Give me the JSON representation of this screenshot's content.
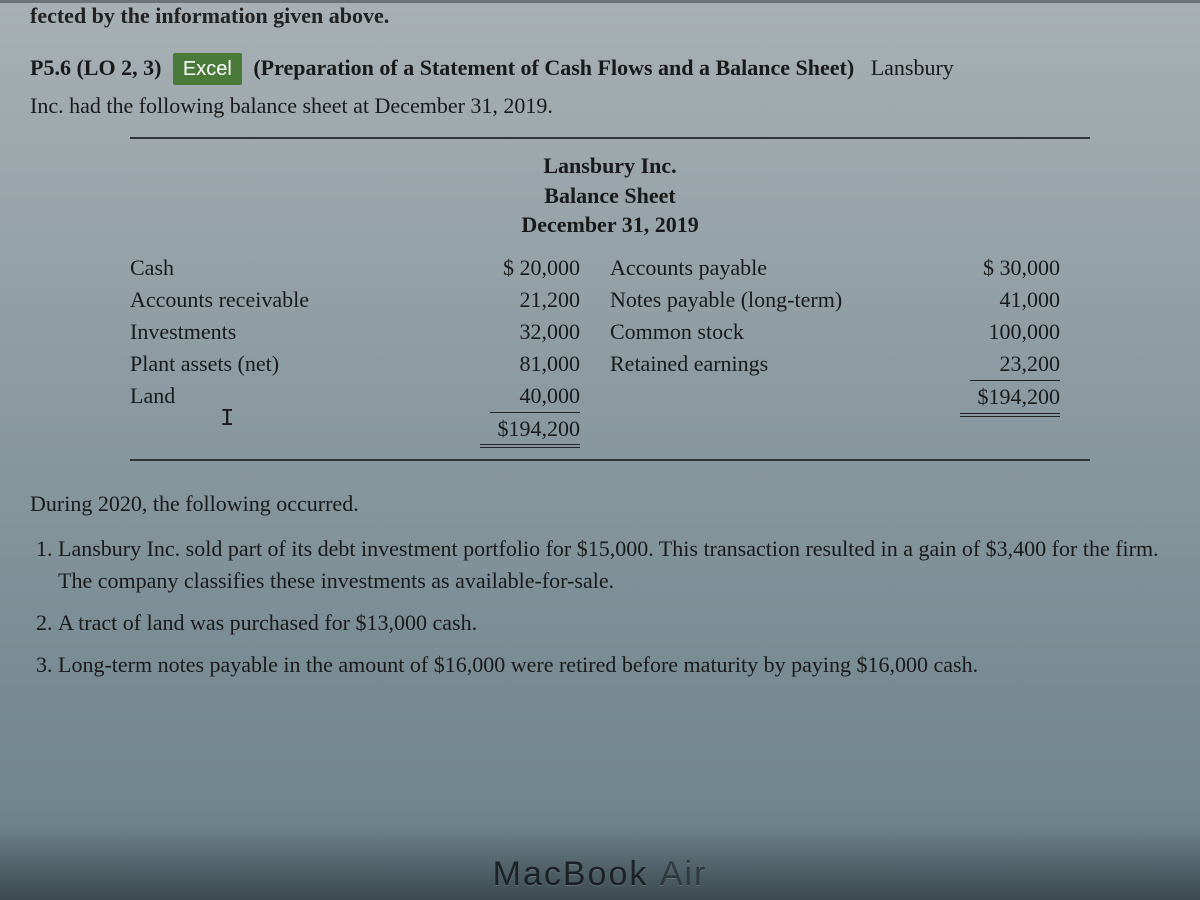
{
  "partial_prev": "fected by the information given above.",
  "problem": {
    "number": "P5.6",
    "lo": "(LO 2, 3)",
    "excel_label": "Excel",
    "title": "(Preparation of a Statement of Cash Flows and a Balance Sheet)",
    "company": "Lansbury",
    "intro_cont": "Inc. had the following balance sheet at December 31, 2019."
  },
  "balance_sheet": {
    "header_company": "Lansbury Inc.",
    "header_title": "Balance Sheet",
    "header_date": "December 31, 2019",
    "left": {
      "rows": [
        {
          "label": "Cash",
          "value": "$ 20,000"
        },
        {
          "label": "Accounts receivable",
          "value": "21,200"
        },
        {
          "label": "Investments",
          "value": "32,000"
        },
        {
          "label": "Plant assets (net)",
          "value": "81,000"
        },
        {
          "label": "Land",
          "value": "40,000"
        }
      ],
      "total": "$194,200"
    },
    "right": {
      "rows": [
        {
          "label": "Accounts payable",
          "value": "$ 30,000"
        },
        {
          "label": "Notes payable (long-term)",
          "value": "41,000"
        },
        {
          "label": "Common stock",
          "value": "100,000"
        },
        {
          "label": "Retained earnings",
          "value": "23,200"
        }
      ],
      "total": "$194,200"
    }
  },
  "cursor": "I",
  "during_text": "During 2020, the following occurred.",
  "events": [
    "Lansbury Inc. sold part of its debt investment portfolio for $15,000. This transaction resulted in a gain of $3,400 for the firm. The company classifies these investments as available-for-sale.",
    "A tract of land was purchased for $13,000 cash.",
    "Long-term notes payable in the amount of $16,000 were retired before maturity by paying $16,000 cash."
  ],
  "device_label": {
    "brand": "MacBook",
    "model": "Air"
  },
  "colors": {
    "excel_badge_bg": "#4a7a3a",
    "text": "#1a1a1a",
    "rule": "#333333"
  }
}
